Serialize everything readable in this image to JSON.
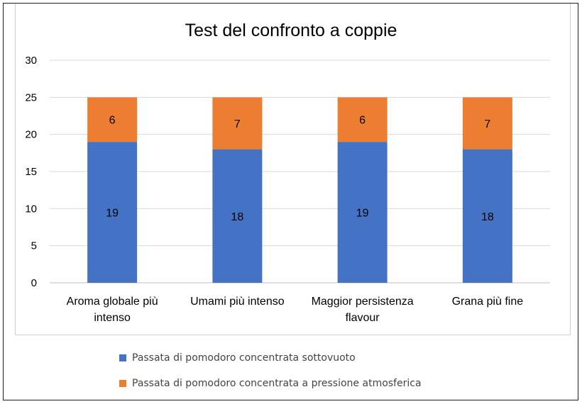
{
  "chart_data": {
    "type": "bar",
    "stacked": true,
    "title": "Test del confronto a coppie",
    "categories": [
      [
        "Aroma globale più",
        "intenso"
      ],
      [
        "Umami più intenso"
      ],
      [
        "Maggior persistenza",
        "flavour"
      ],
      [
        "Grana più fine"
      ]
    ],
    "series": [
      {
        "name": "Passata di pomodoro concentrata sottovuoto",
        "color": "#4472c4",
        "values": [
          19,
          18,
          19,
          18
        ]
      },
      {
        "name": "Passata di pomodoro concentrata a pressione atmosferica",
        "color": "#ed7d31",
        "values": [
          6,
          7,
          6,
          7
        ]
      }
    ],
    "ylim": [
      0,
      30
    ],
    "yticks": [
      0,
      5,
      10,
      15,
      20,
      25,
      30
    ],
    "grid": true,
    "legend": "bottom"
  }
}
